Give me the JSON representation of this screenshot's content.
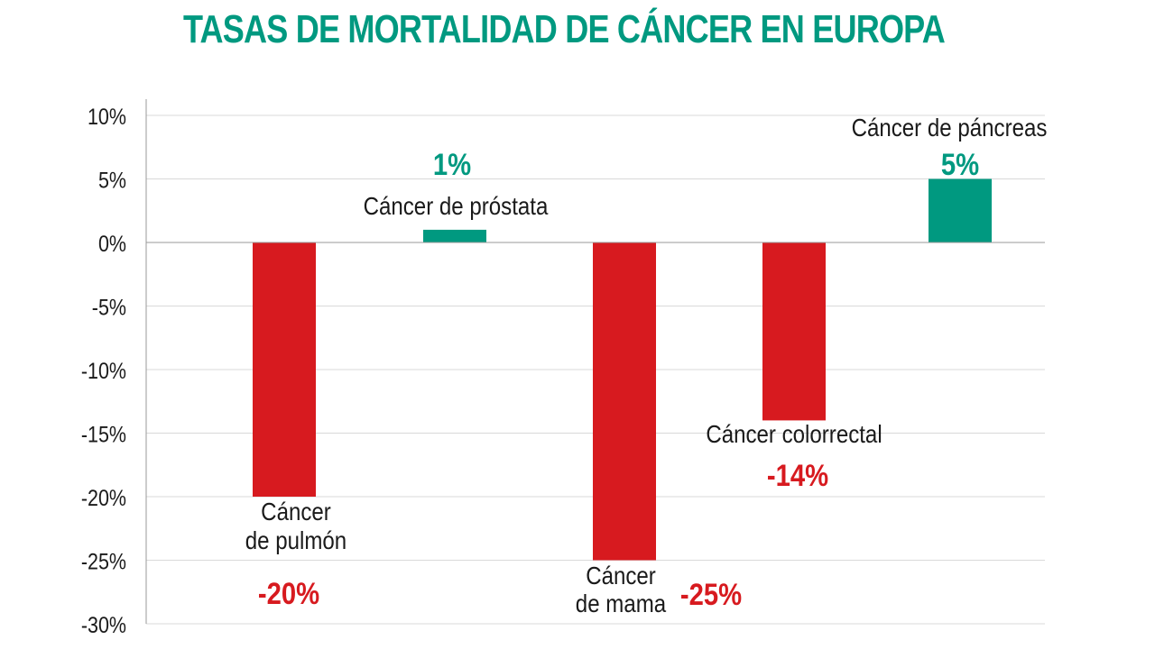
{
  "colors": {
    "title": "#009980",
    "positive": "#009980",
    "negative": "#d71a1f",
    "grid": "#d9d9d9",
    "axis": "#999999",
    "text": "#1a1a1a"
  },
  "chart_data": {
    "type": "bar",
    "title": "TASAS DE MORTALIDAD DE CÁNCER EN EUROPA",
    "xlabel": "",
    "ylabel": "",
    "ylim": [
      -30,
      10
    ],
    "yticks": [
      10,
      5,
      0,
      -5,
      -10,
      -15,
      -20,
      -25,
      -30
    ],
    "ytick_labels": [
      "10%",
      "5%",
      "0%",
      "-5%",
      "-10%",
      "-15%",
      "-20%",
      "-25%",
      "-30%"
    ],
    "grid": true,
    "categories": [
      {
        "lines": [
          "Cáncer",
          "de pulmón"
        ],
        "value": -20,
        "value_label": "-20%"
      },
      {
        "lines": [
          "Cáncer de próstata"
        ],
        "value": 1,
        "value_label": "1%"
      },
      {
        "lines": [
          "Cáncer",
          "de mama"
        ],
        "value": -25,
        "value_label": "-25%"
      },
      {
        "lines": [
          "Cáncer colorrectal"
        ],
        "value": -14,
        "value_label": "-14%"
      },
      {
        "lines": [
          "Cáncer de páncreas"
        ],
        "value": 5,
        "value_label": "5%"
      }
    ]
  }
}
